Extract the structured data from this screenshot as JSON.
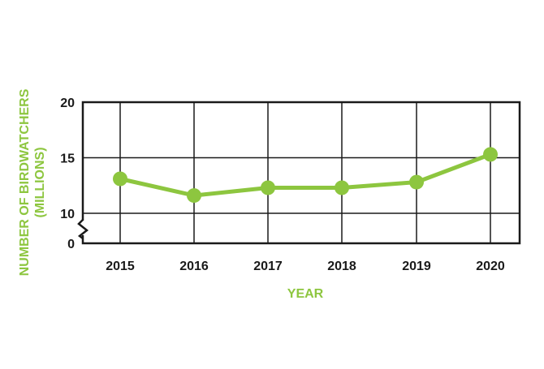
{
  "chart_data": {
    "type": "line",
    "xlabel": "YEAR",
    "ylabel_line1": "NUMBER OF BIRDWATCHERS",
    "ylabel_line2": "(MILLIONS)",
    "categories": [
      "2015",
      "2016",
      "2017",
      "2018",
      "2019",
      "2020"
    ],
    "series": [
      {
        "values": [
          13.1,
          11.6,
          12.3,
          12.3,
          12.8,
          15.3
        ]
      }
    ],
    "y_ticks": [
      "20",
      "15",
      "10",
      "0"
    ],
    "ylim": [
      10,
      20
    ],
    "y_axis_break": true,
    "grid": true,
    "line_color": "#8dc63f",
    "axis_color": "#1a1a1a"
  }
}
